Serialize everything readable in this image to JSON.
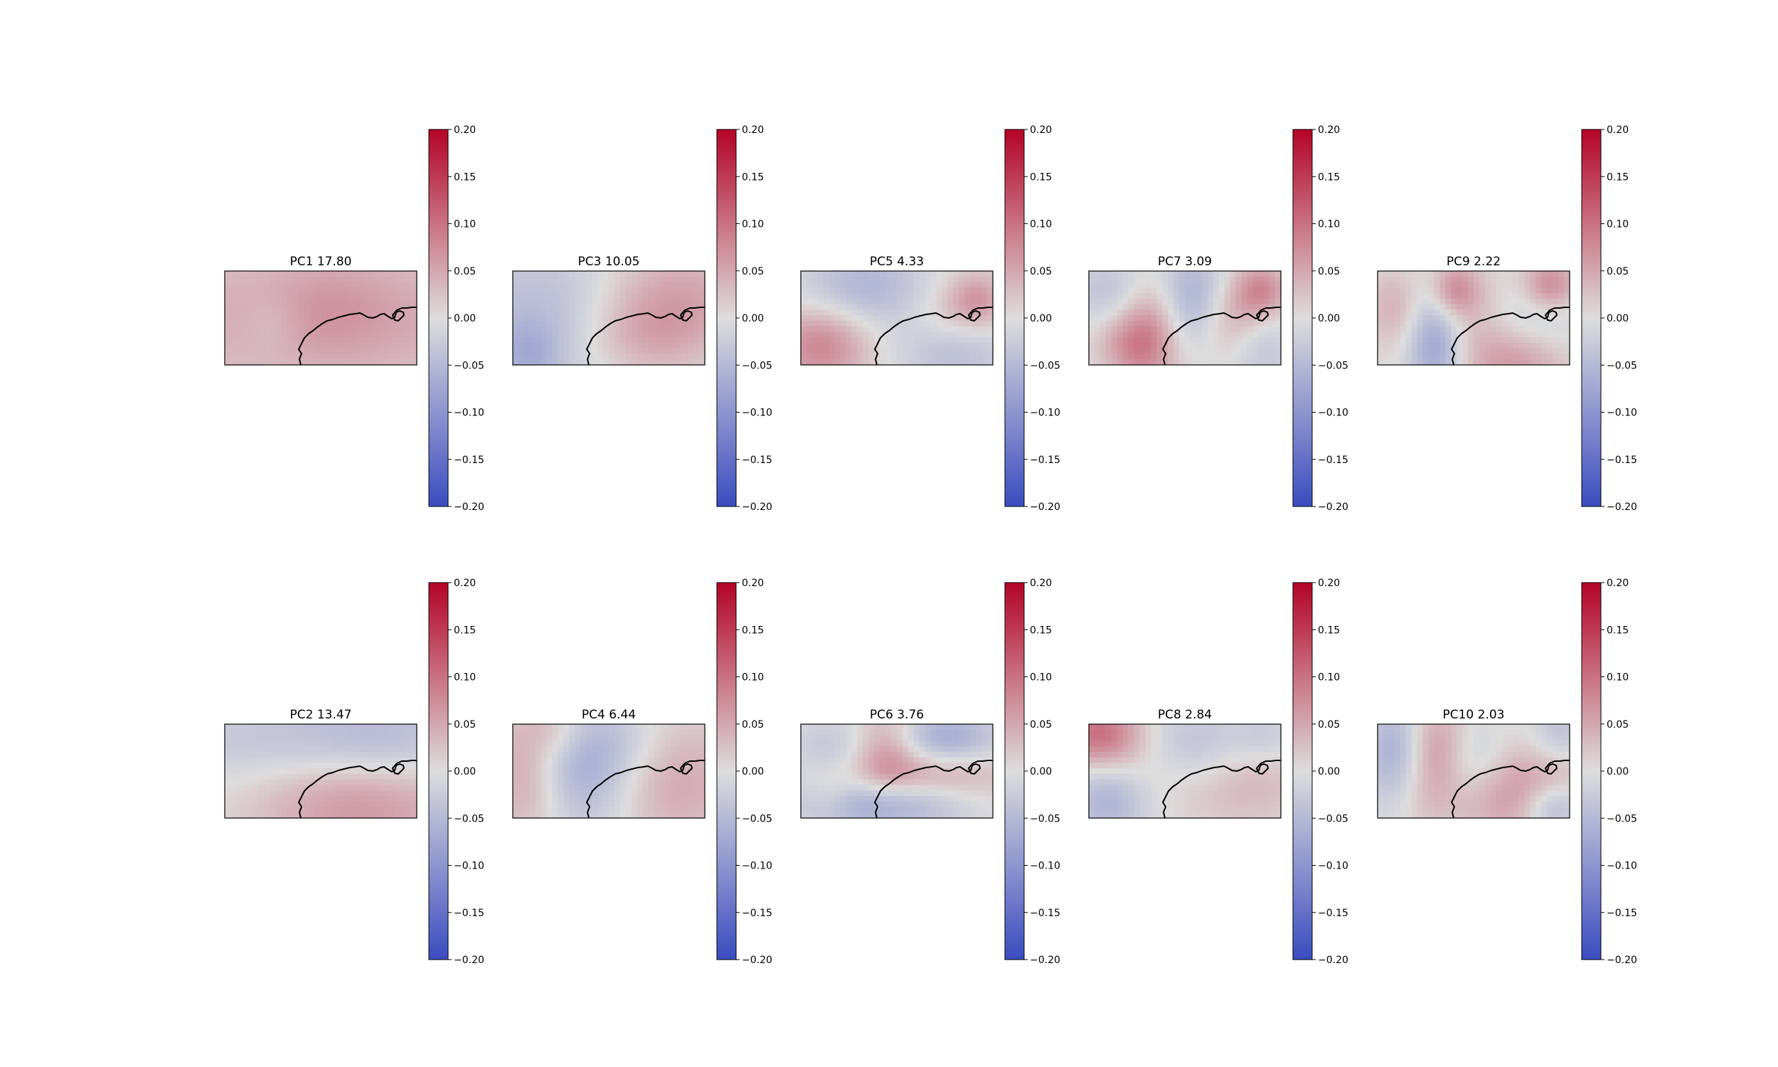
{
  "chart_data": {
    "type": "heatmap",
    "colormap": [
      "#3b4cc0",
      "#dddddd",
      "#b40426"
    ],
    "colorbar": {
      "range": [
        -0.2,
        0.2
      ],
      "ticks": [
        "0.20",
        "0.15",
        "0.10",
        "0.05",
        "0.00",
        "−0.05",
        "−0.10",
        "−0.15",
        "−0.20"
      ]
    },
    "panels": [
      {
        "title": "PC1 17.80",
        "blobs": [
          [
            0.5,
            0.5,
            0.9,
            0.6,
            0.05
          ],
          [
            0.55,
            0.4,
            0.25,
            0.4,
            0.02
          ],
          [
            0.25,
            0.55,
            0.12,
            0.25,
            -0.02
          ]
        ]
      },
      {
        "title": "PC3 10.05",
        "blobs": [
          [
            0.2,
            0.5,
            0.35,
            0.6,
            -0.05
          ],
          [
            0.82,
            0.3,
            0.3,
            0.4,
            0.06
          ],
          [
            0.65,
            0.75,
            0.25,
            0.3,
            0.04
          ],
          [
            0.08,
            0.9,
            0.12,
            0.25,
            -0.04
          ]
        ]
      },
      {
        "title": "PC5  4.33",
        "blobs": [
          [
            0.1,
            0.8,
            0.18,
            0.3,
            0.08
          ],
          [
            0.3,
            0.15,
            0.22,
            0.3,
            -0.05
          ],
          [
            0.6,
            0.3,
            0.2,
            0.3,
            -0.02
          ],
          [
            0.78,
            0.45,
            0.18,
            0.3,
            0.04
          ],
          [
            0.8,
            0.85,
            0.2,
            0.25,
            -0.05
          ],
          [
            0.92,
            0.3,
            0.1,
            0.2,
            0.05
          ]
        ]
      },
      {
        "title": "PC7  3.09",
        "blobs": [
          [
            0.12,
            0.2,
            0.15,
            0.25,
            -0.04
          ],
          [
            0.3,
            0.7,
            0.12,
            0.4,
            0.08
          ],
          [
            0.55,
            0.3,
            0.12,
            0.35,
            -0.07
          ],
          [
            0.75,
            0.5,
            0.15,
            0.3,
            0.05
          ],
          [
            0.9,
            0.2,
            0.1,
            0.2,
            0.07
          ],
          [
            0.9,
            0.8,
            0.12,
            0.3,
            -0.04
          ],
          [
            0.18,
            0.8,
            0.12,
            0.2,
            0.03
          ]
        ]
      },
      {
        "title": "PC9  2.22",
        "blobs": [
          [
            0.08,
            0.4,
            0.1,
            0.3,
            0.04
          ],
          [
            0.3,
            0.8,
            0.1,
            0.35,
            -0.08
          ],
          [
            0.5,
            0.3,
            0.12,
            0.3,
            0.03
          ],
          [
            0.72,
            0.9,
            0.2,
            0.3,
            0.08
          ],
          [
            0.9,
            0.15,
            0.1,
            0.2,
            0.08
          ],
          [
            0.8,
            0.6,
            0.18,
            0.3,
            -0.05
          ],
          [
            0.4,
            0.2,
            0.08,
            0.2,
            0.06
          ]
        ]
      },
      {
        "title": "PC2 13.47",
        "blobs": [
          [
            0.7,
            0.8,
            0.4,
            0.45,
            0.07
          ],
          [
            0.35,
            0.2,
            0.5,
            0.35,
            -0.04
          ],
          [
            0.85,
            0.2,
            0.3,
            0.35,
            -0.04
          ]
        ]
      },
      {
        "title": "PC4 6.44",
        "blobs": [
          [
            0.08,
            0.5,
            0.15,
            0.55,
            0.06
          ],
          [
            0.35,
            0.45,
            0.2,
            0.5,
            -0.07
          ],
          [
            0.6,
            0.2,
            0.2,
            0.3,
            -0.02
          ],
          [
            0.85,
            0.6,
            0.25,
            0.5,
            0.05
          ],
          [
            0.25,
            0.05,
            0.12,
            0.2,
            0.03
          ]
        ]
      },
      {
        "title": "PC6 3.76",
        "blobs": [
          [
            0.15,
            0.25,
            0.15,
            0.25,
            -0.03
          ],
          [
            0.45,
            0.3,
            0.12,
            0.35,
            0.06
          ],
          [
            0.75,
            0.15,
            0.2,
            0.2,
            -0.07
          ],
          [
            0.7,
            0.55,
            0.3,
            0.2,
            0.05
          ],
          [
            0.4,
            0.85,
            0.3,
            0.2,
            -0.08
          ],
          [
            0.15,
            0.75,
            0.1,
            0.2,
            0.03
          ]
        ]
      },
      {
        "title": "PC8 2.84",
        "blobs": [
          [
            0.05,
            0.1,
            0.15,
            0.25,
            0.1
          ],
          [
            0.1,
            0.8,
            0.15,
            0.3,
            -0.06
          ],
          [
            0.3,
            0.4,
            0.2,
            0.3,
            0.02
          ],
          [
            0.55,
            0.25,
            0.2,
            0.3,
            -0.05
          ],
          [
            0.8,
            0.6,
            0.25,
            0.35,
            0.04
          ],
          [
            0.92,
            0.15,
            0.12,
            0.2,
            -0.03
          ]
        ]
      },
      {
        "title": "PC10 2.03",
        "blobs": [
          [
            0.1,
            0.3,
            0.12,
            0.4,
            -0.07
          ],
          [
            0.25,
            0.7,
            0.12,
            0.3,
            0.03
          ],
          [
            0.3,
            0.2,
            0.12,
            0.3,
            0.06
          ],
          [
            0.5,
            0.4,
            0.12,
            0.3,
            -0.04
          ],
          [
            0.75,
            0.75,
            0.25,
            0.35,
            0.07
          ],
          [
            0.92,
            0.9,
            0.12,
            0.2,
            -0.08
          ],
          [
            0.95,
            0.1,
            0.1,
            0.2,
            -0.04
          ]
        ]
      }
    ]
  }
}
